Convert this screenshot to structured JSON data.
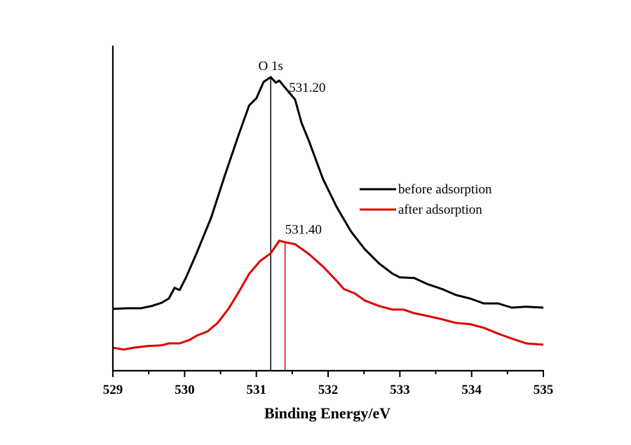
{
  "chart_data": {
    "type": "line",
    "title": "",
    "xlabel": "Binding Energy/eV",
    "ylabel": "",
    "xlim": [
      529,
      535
    ],
    "ylim": [
      0,
      100
    ],
    "y_units": "arbitrary (no y-axis ticks shown)",
    "x_ticks": [
      529,
      530,
      531,
      532,
      533,
      534,
      535
    ],
    "x_tick_labels": [
      "529",
      "530",
      "531",
      "532",
      "533",
      "534",
      "535"
    ],
    "x_minor_ticks": [
      529.5,
      530.5,
      531.5,
      532.5,
      533.5,
      534.5
    ],
    "grid": false,
    "legend_position": "center-right",
    "annotations": [
      {
        "text": "O 1s",
        "x": 531.2,
        "anchor": "above-peak"
      },
      {
        "text": "531.20",
        "x": 531.2,
        "series": "before adsorption"
      },
      {
        "text": "531.40",
        "x": 531.4,
        "series": "after adsorption"
      }
    ],
    "vlines": [
      {
        "x": 531.2,
        "color": "#000000",
        "series": "before adsorption"
      },
      {
        "x": 531.4,
        "color": "#e00000",
        "series": "after adsorption"
      }
    ],
    "series": [
      {
        "name": "before adsorption",
        "color": "#000000",
        "x": [
          529.0,
          529.2,
          529.39,
          529.54,
          529.68,
          529.78,
          529.86,
          529.93,
          530.02,
          530.17,
          530.37,
          530.56,
          530.76,
          530.9,
          531.0,
          531.1,
          531.2,
          531.27,
          531.32,
          531.44,
          531.54,
          531.63,
          531.73,
          531.93,
          532.12,
          532.32,
          532.51,
          532.71,
          532.9,
          533.0,
          533.2,
          533.39,
          533.59,
          533.78,
          533.98,
          534.17,
          534.37,
          534.56,
          534.76,
          535.0
        ],
        "y": [
          18.998,
          19.2,
          19.2,
          19.9,
          20.9,
          22.2,
          25.5,
          24.8,
          28.7,
          36.3,
          47.1,
          60.0,
          73.0,
          81.6,
          83.8,
          88.8,
          90.3,
          88.6,
          89.2,
          86.0,
          83.4,
          76.2,
          70.8,
          58.9,
          50.3,
          42.8,
          37.4,
          33.0,
          29.8,
          28.7,
          28.5,
          26.6,
          25.1,
          23.3,
          22.2,
          20.7,
          20.7,
          19.4,
          19.7,
          19.4
        ]
      },
      {
        "name": "after adsorption",
        "color": "#e00000",
        "x": [
          529.0,
          529.15,
          529.29,
          529.49,
          529.68,
          529.78,
          529.93,
          530.07,
          530.17,
          530.32,
          530.46,
          530.61,
          530.76,
          530.9,
          531.05,
          531.2,
          531.32,
          531.4,
          531.54,
          531.73,
          531.93,
          532.12,
          532.22,
          532.37,
          532.51,
          532.71,
          532.9,
          533.05,
          533.2,
          533.39,
          533.59,
          533.78,
          533.98,
          534.17,
          534.37,
          534.56,
          534.76,
          535.0
        ],
        "y": [
          7.1,
          6.5,
          7.1,
          7.6,
          7.8,
          8.4,
          8.4,
          9.5,
          10.8,
          12.1,
          14.7,
          19.0,
          24.4,
          29.8,
          33.7,
          36.1,
          40.0,
          39.5,
          38.9,
          35.9,
          32.0,
          27.6,
          25.1,
          23.8,
          21.6,
          19.9,
          18.8,
          18.8,
          17.7,
          16.8,
          15.8,
          14.7,
          14.3,
          13.2,
          11.4,
          9.9,
          8.4,
          8.0
        ]
      }
    ]
  },
  "legend": {
    "items": [
      {
        "label": "before adsorption",
        "color": "#000000"
      },
      {
        "label": "after adsorption",
        "color": "#e00000"
      }
    ]
  }
}
